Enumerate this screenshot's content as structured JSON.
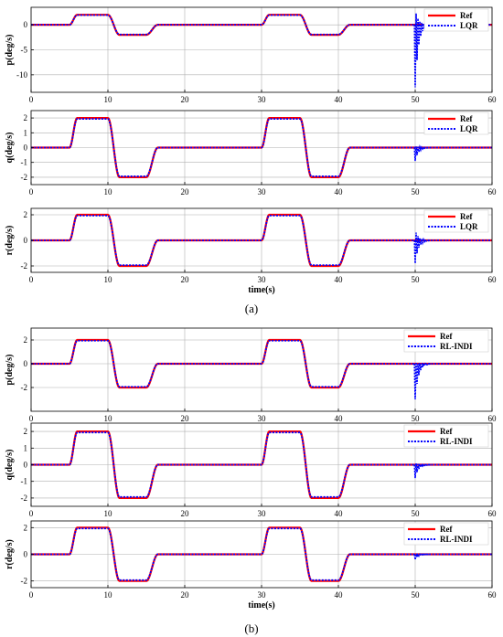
{
  "figure": {
    "caption_a": "(a)",
    "caption_b": "(b)"
  },
  "colors": {
    "ref": "#ff0000",
    "ctrl": "#0000ff",
    "grid": "#b0b0b0",
    "axis": "#000000"
  },
  "chart_data": [
    {
      "type": "line",
      "group": "a",
      "ylabel": "p(deg/s)",
      "xlabel": "",
      "xlim": [
        0,
        60
      ],
      "ylim": [
        -13.5,
        3.5
      ],
      "yticks": [
        0,
        -5,
        -10
      ],
      "xticks": [
        0,
        10,
        20,
        30,
        40,
        50,
        60
      ],
      "grid": true,
      "legend": "top-right",
      "ref_amplitude": 2,
      "series": [
        {
          "name": "Ref"
        },
        {
          "name": "LQR",
          "spike": {
            "t": 50,
            "min": -12.5,
            "max": 3
          }
        }
      ]
    },
    {
      "type": "line",
      "group": "a",
      "ylabel": "q(deg/s)",
      "xlabel": "",
      "xlim": [
        0,
        60
      ],
      "ylim": [
        -2.5,
        2.5
      ],
      "yticks": [
        2,
        1,
        0,
        -1,
        -2
      ],
      "xticks": [
        0,
        10,
        20,
        30,
        40,
        50,
        60
      ],
      "grid": true,
      "legend": "top-right",
      "ref_amplitude": 2,
      "series": [
        {
          "name": "Ref"
        },
        {
          "name": "LQR",
          "spike": {
            "t": 50,
            "min": -0.9,
            "max": 0.1
          }
        }
      ]
    },
    {
      "type": "line",
      "group": "a",
      "ylabel": "r(deg/s)",
      "xlabel": "time(s)",
      "xlim": [
        0,
        60
      ],
      "ylim": [
        -2.5,
        2.5
      ],
      "yticks": [
        2,
        0,
        -2
      ],
      "xticks": [
        0,
        10,
        20,
        30,
        40,
        50,
        60
      ],
      "grid": true,
      "legend": "top-right",
      "ref_amplitude": 2,
      "series": [
        {
          "name": "Ref"
        },
        {
          "name": "LQR",
          "spike": {
            "t": 50,
            "min": -1.8,
            "max": 0.8
          }
        }
      ]
    },
    {
      "type": "line",
      "group": "b",
      "ylabel": "p(deg/s)",
      "xlabel": "",
      "xlim": [
        0,
        60
      ],
      "ylim": [
        -4,
        3
      ],
      "yticks": [
        2,
        0,
        -2
      ],
      "xticks": [
        0,
        10,
        20,
        30,
        40,
        50,
        60
      ],
      "grid": true,
      "legend": "top-right",
      "ref_amplitude": 2,
      "series": [
        {
          "name": "Ref"
        },
        {
          "name": "RL-INDI",
          "spike": {
            "t": 50,
            "min": -3,
            "max": 0
          }
        }
      ]
    },
    {
      "type": "line",
      "group": "b",
      "ylabel": "q(deg/s)",
      "xlabel": "",
      "xlim": [
        0,
        60
      ],
      "ylim": [
        -2.5,
        2.5
      ],
      "yticks": [
        2,
        1,
        0,
        -1,
        -2
      ],
      "xticks": [
        0,
        10,
        20,
        30,
        40,
        50,
        60
      ],
      "grid": true,
      "legend": "top-right",
      "ref_amplitude": 2,
      "series": [
        {
          "name": "Ref"
        },
        {
          "name": "RL-INDI",
          "spike": {
            "t": 50,
            "min": -0.8,
            "max": 0.1
          }
        }
      ]
    },
    {
      "type": "line",
      "group": "b",
      "ylabel": "r(deg/s)",
      "xlabel": "time(s)",
      "xlim": [
        0,
        60
      ],
      "ylim": [
        -2.5,
        2.5
      ],
      "yticks": [
        2,
        0,
        -2
      ],
      "xticks": [
        0,
        10,
        20,
        30,
        40,
        50,
        60
      ],
      "grid": true,
      "legend": "top-right",
      "ref_amplitude": 2,
      "series": [
        {
          "name": "Ref"
        },
        {
          "name": "RL-INDI",
          "spike": {
            "t": 50,
            "min": -0.4,
            "max": 0
          }
        }
      ]
    }
  ]
}
